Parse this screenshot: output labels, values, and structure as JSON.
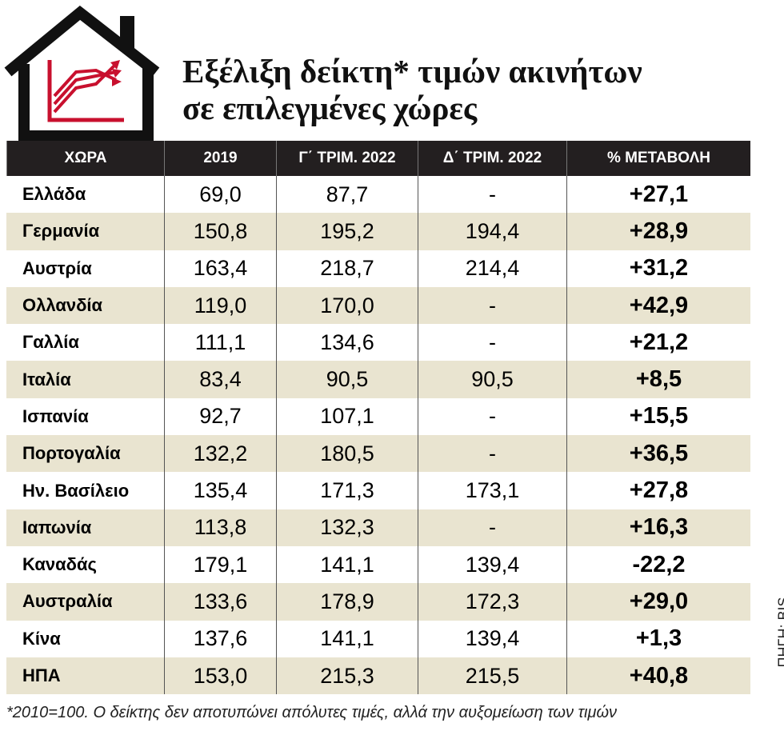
{
  "header": {
    "title": [
      "Εξέλιξη δείκτη* τιμών ακινήτων",
      "σε επιλεγμένες χώρες"
    ]
  },
  "table": {
    "columns": [
      "ΧΩΡΑ",
      "2019",
      "Γ΄ ΤΡΙΜ. 2022",
      "Δ΄ ΤΡΙΜ. 2022",
      "%  ΜΕΤΑΒΟΛΗ"
    ],
    "rows": [
      [
        "Ελλάδα",
        "69,0",
        "87,7",
        "-",
        "+27,1"
      ],
      [
        "Γερμανία",
        "150,8",
        "195,2",
        "194,4",
        "+28,9"
      ],
      [
        "Αυστρία",
        "163,4",
        "218,7",
        "214,4",
        "+31,2"
      ],
      [
        "Ολλανδία",
        "119,0",
        "170,0",
        "-",
        "+42,9"
      ],
      [
        "Γαλλία",
        "111,1",
        "134,6",
        "-",
        "+21,2"
      ],
      [
        "Ιταλία",
        "83,4",
        "90,5",
        "90,5",
        "+8,5"
      ],
      [
        "Ισπανία",
        "92,7",
        "107,1",
        "-",
        "+15,5"
      ],
      [
        "Πορτογαλία",
        "132,2",
        "180,5",
        "-",
        "+36,5"
      ],
      [
        "Ην. Βασίλειο",
        "135,4",
        "171,3",
        "173,1",
        "+27,8"
      ],
      [
        "Ιαπωνία",
        "113,8",
        "132,3",
        "-",
        "+16,3"
      ],
      [
        "Καναδάς",
        "179,1",
        "141,1",
        "139,4",
        "-22,2"
      ],
      [
        "Αυστραλία",
        "133,6",
        "178,9",
        "172,3",
        "+29,0"
      ],
      [
        "Κίνα",
        "137,6",
        "141,1",
        "139,4",
        "+1,3"
      ],
      [
        "ΗΠΑ",
        "153,0",
        "215,3",
        "215,5",
        "+40,8"
      ]
    ]
  },
  "footnote": "*2010=100. Ο δείκτης δεν αποτυπώνει απόλυτες τιμές, αλλά την αυξομείωση των τιμών",
  "source": "ΠΗΓΗ: BIS"
}
